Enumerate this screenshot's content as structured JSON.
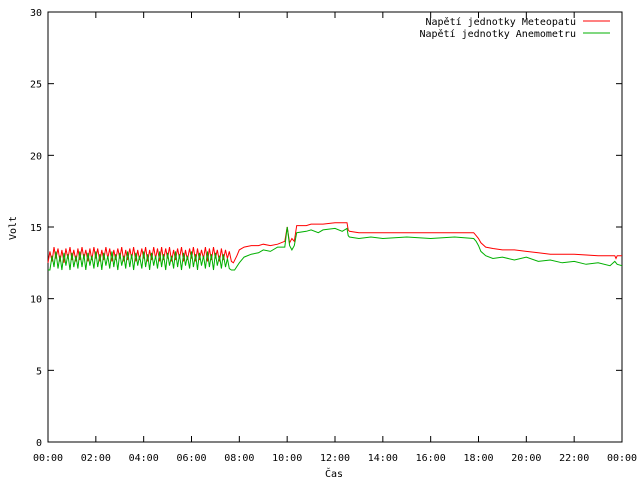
{
  "chart_data": {
    "type": "line",
    "xlabel": "Čas",
    "ylabel": "Volt",
    "xlim": [
      0,
      24
    ],
    "ylim": [
      0,
      30
    ],
    "x_ticks": [
      "00:00",
      "02:00",
      "04:00",
      "06:00",
      "08:00",
      "10:00",
      "12:00",
      "14:00",
      "16:00",
      "18:00",
      "20:00",
      "22:00",
      "00:00"
    ],
    "y_ticks": [
      "0",
      "5",
      "10",
      "15",
      "20",
      "25",
      "30"
    ],
    "grid": false,
    "legend_position": "top-right",
    "series": [
      {
        "name": "Napětí jednotky Meteopatu",
        "color": "#ff0000",
        "points": [
          [
            0.0,
            12.5
          ],
          [
            0.08,
            13.3
          ],
          [
            0.17,
            12.6
          ],
          [
            0.25,
            13.6
          ],
          [
            0.33,
            12.8
          ],
          [
            0.42,
            13.5
          ],
          [
            0.5,
            12.6
          ],
          [
            0.58,
            13.4
          ],
          [
            0.67,
            12.5
          ],
          [
            0.75,
            13.5
          ],
          [
            0.83,
            12.8
          ],
          [
            0.92,
            13.6
          ],
          [
            1.0,
            12.7
          ],
          [
            1.08,
            13.4
          ],
          [
            1.17,
            12.6
          ],
          [
            1.25,
            13.5
          ],
          [
            1.33,
            12.7
          ],
          [
            1.42,
            13.6
          ],
          [
            1.5,
            12.8
          ],
          [
            1.58,
            13.4
          ],
          [
            1.67,
            12.6
          ],
          [
            1.75,
            13.5
          ],
          [
            1.83,
            12.7
          ],
          [
            1.92,
            13.6
          ],
          [
            2.0,
            12.8
          ],
          [
            2.08,
            13.5
          ],
          [
            2.17,
            12.6
          ],
          [
            2.25,
            13.4
          ],
          [
            2.33,
            12.7
          ],
          [
            2.42,
            13.6
          ],
          [
            2.5,
            12.8
          ],
          [
            2.58,
            13.5
          ],
          [
            2.67,
            12.6
          ],
          [
            2.75,
            13.4
          ],
          [
            2.83,
            12.7
          ],
          [
            2.92,
            13.5
          ],
          [
            3.0,
            12.8
          ],
          [
            3.08,
            13.6
          ],
          [
            3.17,
            12.6
          ],
          [
            3.25,
            13.4
          ],
          [
            3.33,
            12.7
          ],
          [
            3.42,
            13.5
          ],
          [
            3.5,
            12.8
          ],
          [
            3.58,
            13.6
          ],
          [
            3.67,
            12.6
          ],
          [
            3.75,
            13.4
          ],
          [
            3.83,
            12.7
          ],
          [
            3.92,
            13.5
          ],
          [
            4.0,
            12.8
          ],
          [
            4.08,
            13.6
          ],
          [
            4.17,
            12.6
          ],
          [
            4.25,
            13.4
          ],
          [
            4.33,
            12.7
          ],
          [
            4.42,
            13.6
          ],
          [
            4.5,
            12.8
          ],
          [
            4.58,
            13.5
          ],
          [
            4.67,
            12.6
          ],
          [
            4.75,
            13.6
          ],
          [
            4.83,
            12.7
          ],
          [
            4.92,
            13.5
          ],
          [
            5.0,
            12.8
          ],
          [
            5.08,
            13.6
          ],
          [
            5.17,
            12.6
          ],
          [
            5.25,
            13.4
          ],
          [
            5.33,
            12.7
          ],
          [
            5.42,
            13.5
          ],
          [
            5.5,
            12.8
          ],
          [
            5.58,
            13.6
          ],
          [
            5.67,
            12.6
          ],
          [
            5.75,
            13.4
          ],
          [
            5.83,
            12.7
          ],
          [
            5.92,
            13.5
          ],
          [
            6.0,
            12.8
          ],
          [
            6.08,
            13.6
          ],
          [
            6.17,
            12.6
          ],
          [
            6.25,
            13.5
          ],
          [
            6.33,
            12.7
          ],
          [
            6.42,
            13.4
          ],
          [
            6.5,
            12.8
          ],
          [
            6.58,
            13.6
          ],
          [
            6.67,
            12.6
          ],
          [
            6.75,
            13.5
          ],
          [
            6.83,
            12.7
          ],
          [
            6.92,
            13.6
          ],
          [
            7.0,
            12.8
          ],
          [
            7.08,
            13.4
          ],
          [
            7.17,
            12.6
          ],
          [
            7.25,
            13.5
          ],
          [
            7.33,
            12.7
          ],
          [
            7.42,
            13.4
          ],
          [
            7.5,
            12.8
          ],
          [
            7.58,
            13.3
          ],
          [
            7.67,
            12.6
          ],
          [
            7.75,
            12.5
          ],
          [
            7.9,
            13.0
          ],
          [
            8.0,
            13.4
          ],
          [
            8.2,
            13.6
          ],
          [
            8.5,
            13.7
          ],
          [
            8.8,
            13.7
          ],
          [
            9.0,
            13.8
          ],
          [
            9.3,
            13.7
          ],
          [
            9.6,
            13.8
          ],
          [
            9.9,
            14.0
          ],
          [
            10.0,
            15.0
          ],
          [
            10.1,
            13.9
          ],
          [
            10.2,
            14.2
          ],
          [
            10.3,
            14.0
          ],
          [
            10.4,
            15.1
          ],
          [
            10.8,
            15.1
          ],
          [
            11.0,
            15.2
          ],
          [
            11.5,
            15.2
          ],
          [
            12.0,
            15.3
          ],
          [
            12.5,
            15.3
          ],
          [
            12.55,
            14.8
          ],
          [
            12.6,
            14.7
          ],
          [
            13.0,
            14.6
          ],
          [
            14.0,
            14.6
          ],
          [
            15.0,
            14.6
          ],
          [
            16.0,
            14.6
          ],
          [
            17.0,
            14.6
          ],
          [
            17.8,
            14.6
          ],
          [
            17.9,
            14.4
          ],
          [
            18.0,
            14.2
          ],
          [
            18.1,
            13.9
          ],
          [
            18.3,
            13.6
          ],
          [
            18.6,
            13.5
          ],
          [
            19.0,
            13.4
          ],
          [
            19.5,
            13.4
          ],
          [
            20.0,
            13.3
          ],
          [
            20.5,
            13.2
          ],
          [
            21.0,
            13.1
          ],
          [
            22.0,
            13.1
          ],
          [
            23.0,
            13.0
          ],
          [
            23.5,
            13.0
          ],
          [
            23.7,
            13.0
          ],
          [
            23.75,
            12.8
          ],
          [
            23.8,
            13.0
          ],
          [
            24.0,
            13.0
          ]
        ]
      },
      {
        "name": "Napětí jednotky Anemometru",
        "color": "#00b000",
        "points": [
          [
            0.0,
            12.0
          ],
          [
            0.08,
            12.0
          ],
          [
            0.17,
            13.0
          ],
          [
            0.25,
            12.2
          ],
          [
            0.33,
            13.3
          ],
          [
            0.42,
            12.1
          ],
          [
            0.5,
            13.0
          ],
          [
            0.58,
            12.0
          ],
          [
            0.67,
            13.2
          ],
          [
            0.75,
            12.3
          ],
          [
            0.83,
            13.1
          ],
          [
            0.92,
            12.0
          ],
          [
            1.0,
            13.2
          ],
          [
            1.08,
            12.2
          ],
          [
            1.17,
            13.0
          ],
          [
            1.25,
            12.1
          ],
          [
            1.33,
            13.3
          ],
          [
            1.42,
            12.2
          ],
          [
            1.5,
            13.1
          ],
          [
            1.58,
            12.0
          ],
          [
            1.67,
            13.2
          ],
          [
            1.75,
            12.3
          ],
          [
            1.83,
            13.0
          ],
          [
            1.92,
            12.1
          ],
          [
            2.0,
            13.3
          ],
          [
            2.08,
            12.2
          ],
          [
            2.17,
            13.1
          ],
          [
            2.25,
            12.0
          ],
          [
            2.33,
            13.2
          ],
          [
            2.42,
            12.3
          ],
          [
            2.5,
            13.0
          ],
          [
            2.58,
            12.1
          ],
          [
            2.67,
            13.3
          ],
          [
            2.75,
            12.2
          ],
          [
            2.83,
            13.1
          ],
          [
            2.92,
            12.0
          ],
          [
            3.0,
            13.2
          ],
          [
            3.08,
            12.3
          ],
          [
            3.17,
            13.0
          ],
          [
            3.25,
            12.1
          ],
          [
            3.33,
            13.3
          ],
          [
            3.42,
            12.2
          ],
          [
            3.5,
            13.1
          ],
          [
            3.58,
            12.0
          ],
          [
            3.67,
            13.2
          ],
          [
            3.75,
            12.3
          ],
          [
            3.83,
            13.0
          ],
          [
            3.92,
            12.1
          ],
          [
            4.0,
            13.3
          ],
          [
            4.08,
            12.2
          ],
          [
            4.17,
            13.1
          ],
          [
            4.25,
            12.0
          ],
          [
            4.33,
            13.2
          ],
          [
            4.42,
            12.3
          ],
          [
            4.5,
            13.0
          ],
          [
            4.58,
            12.1
          ],
          [
            4.67,
            13.3
          ],
          [
            4.75,
            12.2
          ],
          [
            4.83,
            13.1
          ],
          [
            4.92,
            12.0
          ],
          [
            5.0,
            13.2
          ],
          [
            5.08,
            12.3
          ],
          [
            5.17,
            13.0
          ],
          [
            5.25,
            12.1
          ],
          [
            5.33,
            13.3
          ],
          [
            5.42,
            12.2
          ],
          [
            5.5,
            13.1
          ],
          [
            5.58,
            12.0
          ],
          [
            5.67,
            13.2
          ],
          [
            5.75,
            12.3
          ],
          [
            5.83,
            13.0
          ],
          [
            5.92,
            12.1
          ],
          [
            6.0,
            13.3
          ],
          [
            6.08,
            12.2
          ],
          [
            6.17,
            13.1
          ],
          [
            6.25,
            12.0
          ],
          [
            6.33,
            13.2
          ],
          [
            6.42,
            12.3
          ],
          [
            6.5,
            13.0
          ],
          [
            6.58,
            12.1
          ],
          [
            6.67,
            13.3
          ],
          [
            6.75,
            12.2
          ],
          [
            6.83,
            13.1
          ],
          [
            6.92,
            12.0
          ],
          [
            7.0,
            13.2
          ],
          [
            7.08,
            12.3
          ],
          [
            7.17,
            13.0
          ],
          [
            7.25,
            12.1
          ],
          [
            7.33,
            13.1
          ],
          [
            7.42,
            12.2
          ],
          [
            7.5,
            12.8
          ],
          [
            7.58,
            12.1
          ],
          [
            7.67,
            12.0
          ],
          [
            7.8,
            12.0
          ],
          [
            8.0,
            12.5
          ],
          [
            8.2,
            12.9
          ],
          [
            8.5,
            13.1
          ],
          [
            8.8,
            13.2
          ],
          [
            9.0,
            13.4
          ],
          [
            9.3,
            13.3
          ],
          [
            9.6,
            13.6
          ],
          [
            9.9,
            13.6
          ],
          [
            10.0,
            15.0
          ],
          [
            10.1,
            13.7
          ],
          [
            10.2,
            13.4
          ],
          [
            10.3,
            13.7
          ],
          [
            10.4,
            14.6
          ],
          [
            10.8,
            14.7
          ],
          [
            11.0,
            14.8
          ],
          [
            11.3,
            14.6
          ],
          [
            11.5,
            14.8
          ],
          [
            12.0,
            14.9
          ],
          [
            12.3,
            14.7
          ],
          [
            12.5,
            14.9
          ],
          [
            12.55,
            14.4
          ],
          [
            12.6,
            14.3
          ],
          [
            13.0,
            14.2
          ],
          [
            13.5,
            14.3
          ],
          [
            14.0,
            14.2
          ],
          [
            15.0,
            14.3
          ],
          [
            16.0,
            14.2
          ],
          [
            17.0,
            14.3
          ],
          [
            17.8,
            14.2
          ],
          [
            17.9,
            14.0
          ],
          [
            18.0,
            13.7
          ],
          [
            18.1,
            13.3
          ],
          [
            18.3,
            13.0
          ],
          [
            18.6,
            12.8
          ],
          [
            19.0,
            12.9
          ],
          [
            19.5,
            12.7
          ],
          [
            20.0,
            12.9
          ],
          [
            20.5,
            12.6
          ],
          [
            21.0,
            12.7
          ],
          [
            21.5,
            12.5
          ],
          [
            22.0,
            12.6
          ],
          [
            22.5,
            12.4
          ],
          [
            23.0,
            12.5
          ],
          [
            23.5,
            12.3
          ],
          [
            23.7,
            12.6
          ],
          [
            23.8,
            12.4
          ],
          [
            24.0,
            12.3
          ]
        ]
      }
    ]
  }
}
